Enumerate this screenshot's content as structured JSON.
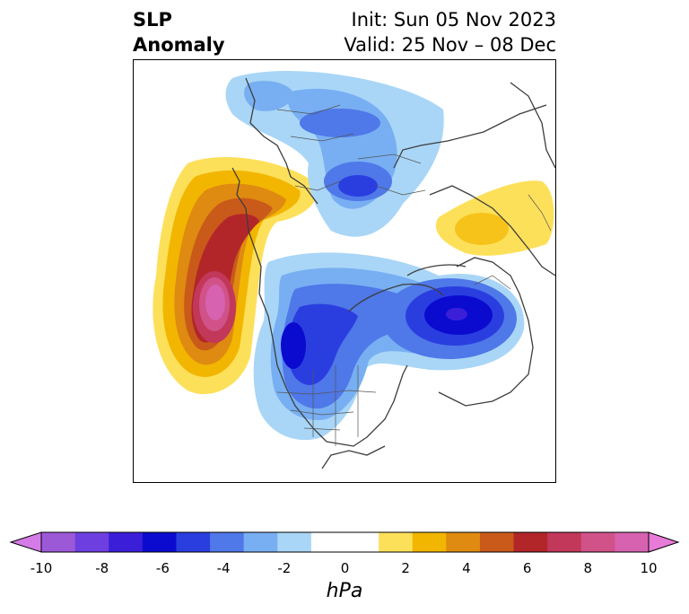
{
  "title": {
    "left_line1": "SLP",
    "left_line2": "Anomaly",
    "right_line1": "Init: Sun 05 Nov 2023",
    "right_line2": "Valid: 25 Nov – 08 Dec"
  },
  "colorbar": {
    "unit": "hPa",
    "tick_labels": [
      "-10",
      "-8",
      "-6",
      "-4",
      "-2",
      "0",
      "2",
      "4",
      "6",
      "8",
      "10"
    ],
    "colors": [
      "#9b59d8",
      "#6e3fe0",
      "#3b1fd8",
      "#0b0bd0",
      "#2a3ee0",
      "#4f78e8",
      "#78aff2",
      "#a9d6f7",
      "#ffffff",
      "#ffffff",
      "#fde05a",
      "#f2b600",
      "#df8a10",
      "#c95a1a",
      "#b2262a",
      "#c2385a",
      "#d05288",
      "#d662b0"
    ],
    "min_extension_color": "#d57be8",
    "max_extension_color": "#e87ad8"
  }
}
